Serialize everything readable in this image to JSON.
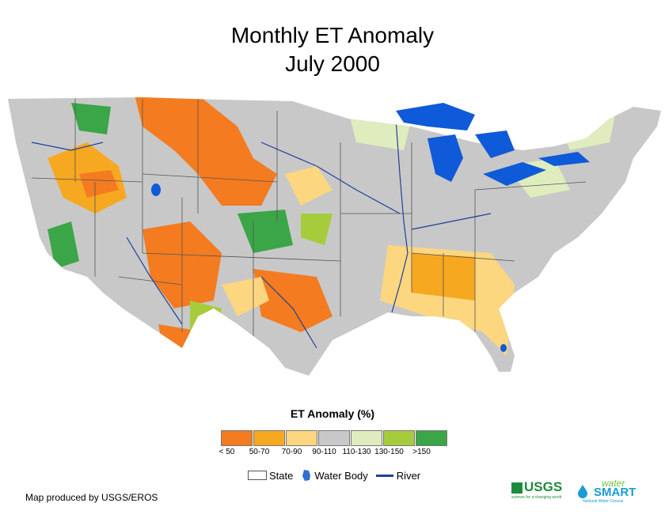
{
  "title": {
    "line1": "Monthly ET Anomaly",
    "line2": "July 2000"
  },
  "legend": {
    "title": "ET Anomaly (%)",
    "classes": [
      {
        "label": "< 50",
        "color": "#f47b20"
      },
      {
        "label": "50-70",
        "color": "#f7a821"
      },
      {
        "label": "70-90",
        "color": "#fdd680"
      },
      {
        "label": "90-110",
        "color": "#c8c8c8"
      },
      {
        "label": "110-130",
        "color": "#dfecbd"
      },
      {
        "label": "130-150",
        "color": "#a6cc3c"
      },
      {
        "label": ">150",
        "color": "#3aa647"
      }
    ],
    "key": {
      "state": "State",
      "water": "Water Body",
      "river": "River"
    }
  },
  "credit": "Map produced by USGS/EROS",
  "logos": {
    "usgs": "USGS",
    "usgs_tagline": "science for a changing world",
    "ws_top": "water",
    "ws_main": "SMART",
    "ws_sub": "National Water Census"
  },
  "colors": {
    "water": "#0f5ad8",
    "river": "#1f3f9c",
    "state_line": "#555555"
  }
}
